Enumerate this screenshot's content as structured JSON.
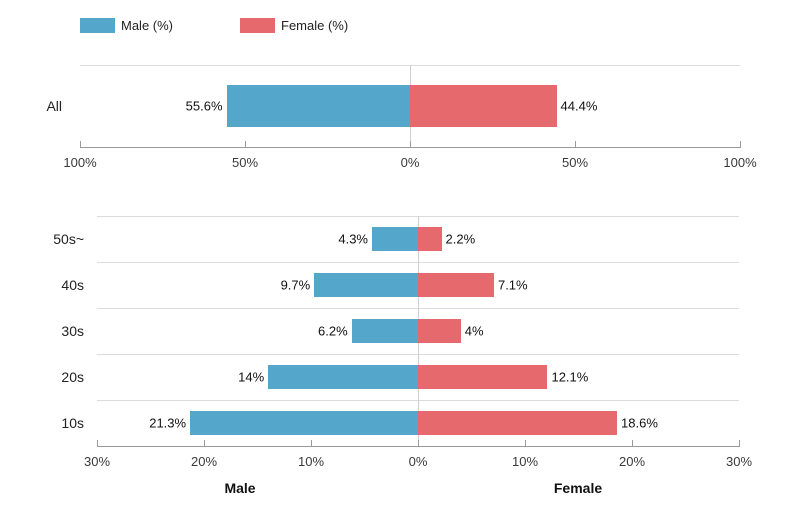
{
  "legend": {
    "items": [
      {
        "id": "male",
        "label": "Male (%)",
        "color": "#54a7cb"
      },
      {
        "id": "female",
        "label": "Female (%)",
        "color": "#e5696d"
      }
    ]
  },
  "colors": {
    "male": "#54a7cb",
    "female": "#e5696d",
    "gridline": "#dcdcdc",
    "axis_line": "#9a9a9a",
    "center_line": "#cfcfcf"
  },
  "chart_data": [
    {
      "type": "bar",
      "variant": "diverging-horizontal",
      "title": "",
      "categories": [
        "All"
      ],
      "series": [
        {
          "name": "Male (%)",
          "side": "left",
          "color": "#54a7cb",
          "values": [
            55.6
          ],
          "labels": [
            "55.6%"
          ]
        },
        {
          "name": "Female (%)",
          "side": "right",
          "color": "#e5696d",
          "values": [
            44.4
          ],
          "labels": [
            "44.4%"
          ]
        }
      ],
      "x_axis": {
        "ticks": [
          "100%",
          "50%",
          "0%",
          "50%",
          "100%"
        ],
        "max": 100
      },
      "legend_position": "top",
      "grid": true
    },
    {
      "type": "bar",
      "variant": "diverging-horizontal",
      "title": "",
      "categories": [
        "50s~",
        "40s",
        "30s",
        "20s",
        "10s"
      ],
      "series": [
        {
          "name": "Male (%)",
          "side": "left",
          "color": "#54a7cb",
          "values": [
            4.3,
            9.7,
            6.2,
            14,
            21.3
          ],
          "labels": [
            "4.3%",
            "9.7%",
            "6.2%",
            "14%",
            "21.3%"
          ]
        },
        {
          "name": "Female (%)",
          "side": "right",
          "color": "#e5696d",
          "values": [
            2.2,
            7.1,
            4,
            12.1,
            18.6
          ],
          "labels": [
            "2.2%",
            "7.1%",
            "4%",
            "12.1%",
            "18.6%"
          ]
        }
      ],
      "x_axis": {
        "ticks": [
          "30%",
          "20%",
          "10%",
          "0%",
          "10%",
          "20%",
          "30%"
        ],
        "max": 30
      },
      "axis_titles": {
        "left": "Male",
        "right": "Female"
      },
      "grid": true
    }
  ]
}
